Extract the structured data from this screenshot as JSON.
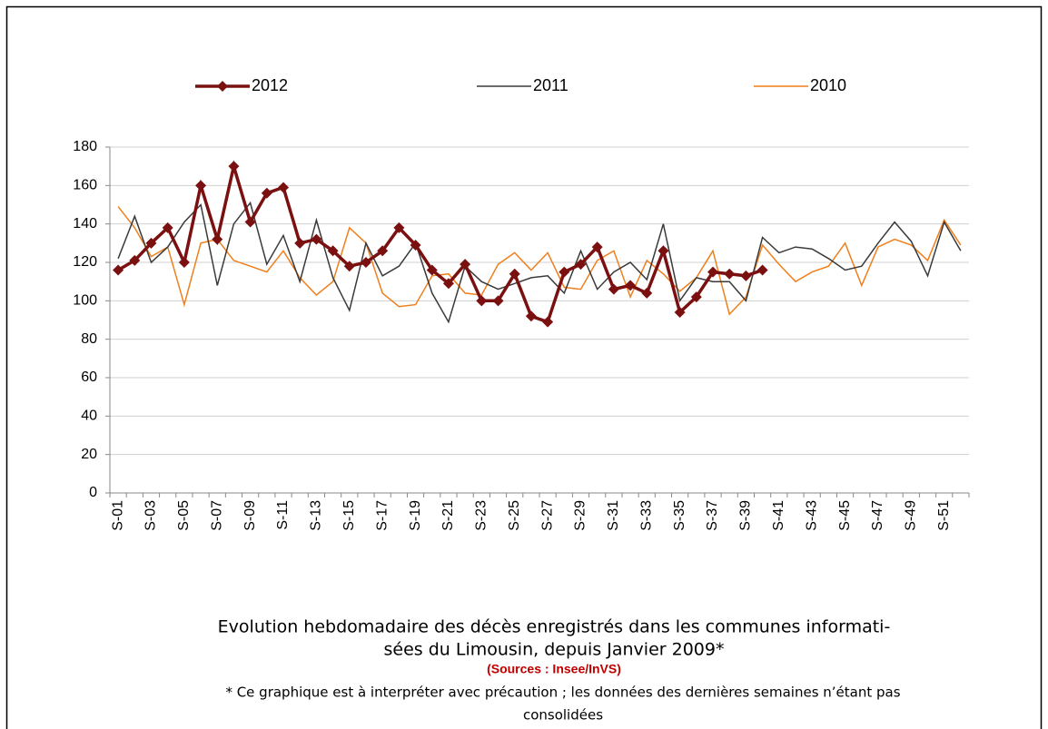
{
  "chart_data": {
    "type": "line",
    "categories": [
      "S-01",
      null,
      "S-03",
      null,
      "S-05",
      null,
      "S-07",
      null,
      "S-09",
      null,
      "S-11",
      null,
      "S-13",
      null,
      "S-15",
      null,
      "S-17",
      null,
      "S-19",
      null,
      "S-21",
      null,
      "S-23",
      null,
      "S-25",
      null,
      "S-27",
      null,
      "S-29",
      null,
      "S-31",
      null,
      "S-33",
      null,
      "S-35",
      null,
      "S-37",
      null,
      "S-39",
      null,
      "S-41",
      null,
      "S-43",
      null,
      "S-45",
      null,
      "S-47",
      null,
      "S-49",
      null,
      "S-51",
      null
    ],
    "series": [
      {
        "name": "2012",
        "color": "#7b1010",
        "values": [
          116,
          121,
          130,
          138,
          120,
          160,
          132,
          170,
          141,
          156,
          159,
          130,
          132,
          126,
          118,
          120,
          126,
          138,
          129,
          116,
          109,
          119,
          100,
          100,
          114,
          92,
          89,
          115,
          119,
          128,
          106,
          108,
          104,
          126,
          94,
          102,
          115,
          114,
          113,
          116,
          null,
          null,
          null,
          null,
          null,
          null,
          null,
          null,
          null,
          null,
          null,
          null
        ]
      },
      {
        "name": "2011",
        "color": "#3a3a3a",
        "values": [
          122,
          144,
          120,
          128,
          141,
          150,
          108,
          140,
          151,
          119,
          134,
          110,
          142,
          112,
          95,
          130,
          113,
          118,
          130,
          104,
          89,
          118,
          110,
          106,
          109,
          112,
          113,
          104,
          126,
          106,
          115,
          120,
          111,
          140,
          100,
          112,
          110,
          110,
          100,
          133,
          125,
          128,
          127,
          122,
          116,
          118,
          130,
          141,
          131,
          113,
          141,
          126
        ]
      },
      {
        "name": "2010",
        "color": "#f07f1c",
        "values": [
          149,
          138,
          123,
          128,
          98,
          130,
          132,
          121,
          118,
          115,
          126,
          112,
          103,
          110,
          138,
          130,
          104,
          97,
          98,
          113,
          114,
          104,
          103,
          119,
          125,
          116,
          125,
          107,
          106,
          121,
          126,
          102,
          121,
          114,
          105,
          112,
          126,
          93,
          102,
          129,
          119,
          110,
          115,
          118,
          130,
          108,
          128,
          132,
          129,
          121,
          142,
          129
        ]
      }
    ],
    "ylim": [
      0,
      180
    ],
    "yticks": [
      0,
      20,
      40,
      60,
      80,
      100,
      120,
      140,
      160,
      180
    ],
    "grid": true,
    "caption": [
      "Evolution hebdomadaire des décès enregistrés dans les communes informati-",
      "sées du Limousin, depuis Janvier  2009*"
    ],
    "sources": "(Sources : Insee/InVS)",
    "note": [
      "* Ce graphique est à interpréter avec précaution ; les données des dernières semaines n’étant pas",
      "consolidées"
    ]
  }
}
